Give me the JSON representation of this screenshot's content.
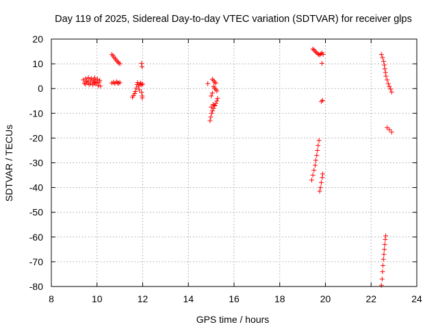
{
  "chart_data": {
    "type": "scatter",
    "title": "Day 119 of 2025, Sidereal Day-to-day VTEC variation (SDTVAR) for receiver glps",
    "xlabel": "GPS time / hours",
    "ylabel": "SDTVAR / TECUs",
    "xlim": [
      8,
      24
    ],
    "ylim": [
      -80,
      20
    ],
    "xticks": [
      "8",
      "10",
      "12",
      "14",
      "16",
      "18",
      "20",
      "22",
      "24"
    ],
    "yticks": [
      "20",
      "10",
      "0",
      "-10",
      "-20",
      "-30",
      "-40",
      "-50",
      "-60",
      "-70",
      "-80"
    ],
    "grid": true,
    "marker": "+",
    "color": "#ff0000",
    "series": [
      {
        "name": "SDTVAR",
        "points": [
          [
            9.4,
            3.5
          ],
          [
            9.45,
            2.2
          ],
          [
            9.5,
            4.0
          ],
          [
            9.5,
            1.8
          ],
          [
            9.55,
            3.0
          ],
          [
            9.6,
            2.6
          ],
          [
            9.62,
            4.4
          ],
          [
            9.65,
            1.6
          ],
          [
            9.7,
            3.4
          ],
          [
            9.72,
            2.0
          ],
          [
            9.75,
            4.1
          ],
          [
            9.8,
            2.8
          ],
          [
            9.82,
            1.5
          ],
          [
            9.85,
            3.6
          ],
          [
            9.88,
            2.4
          ],
          [
            9.9,
            4.3
          ],
          [
            9.92,
            1.9
          ],
          [
            9.95,
            3.1
          ],
          [
            10.0,
            2.3
          ],
          [
            10.02,
            3.8
          ],
          [
            10.05,
            1.2
          ],
          [
            10.1,
            2.6
          ],
          [
            10.12,
            3.3
          ],
          [
            10.15,
            1.0
          ],
          [
            10.65,
            13.8
          ],
          [
            10.7,
            13.2
          ],
          [
            10.75,
            12.6
          ],
          [
            10.8,
            12.0
          ],
          [
            10.85,
            11.4
          ],
          [
            10.9,
            10.9
          ],
          [
            10.95,
            10.4
          ],
          [
            11.0,
            10.0
          ],
          [
            10.65,
            2.2
          ],
          [
            10.72,
            2.6
          ],
          [
            10.78,
            2.0
          ],
          [
            10.85,
            2.8
          ],
          [
            10.9,
            2.3
          ],
          [
            10.95,
            2.1
          ],
          [
            11.0,
            2.5
          ],
          [
            11.55,
            -3.5
          ],
          [
            11.6,
            -2.8
          ],
          [
            11.65,
            -2.0
          ],
          [
            11.68,
            -1.2
          ],
          [
            11.72,
            0.2
          ],
          [
            11.75,
            1.6
          ],
          [
            11.78,
            2.4
          ],
          [
            11.82,
            1.0
          ],
          [
            11.85,
            -0.5
          ],
          [
            11.88,
            1.8
          ],
          [
            11.92,
            2.2
          ],
          [
            11.95,
            1.5
          ],
          [
            12.0,
            1.8
          ],
          [
            11.95,
            -1.5
          ],
          [
            11.98,
            -3.0
          ],
          [
            11.95,
            10.2
          ],
          [
            11.97,
            8.8
          ],
          [
            11.98,
            -3.8
          ],
          [
            14.85,
            2.0
          ],
          [
            15.05,
            3.8
          ],
          [
            15.1,
            3.2
          ],
          [
            15.15,
            2.6
          ],
          [
            15.2,
            2.2
          ],
          [
            15.1,
            0.8
          ],
          [
            15.15,
            0.2
          ],
          [
            15.2,
            -0.4
          ],
          [
            15.25,
            -1.0
          ],
          [
            15.05,
            -1.8
          ],
          [
            15.0,
            -3.0
          ],
          [
            14.95,
            -13.0
          ],
          [
            14.98,
            -11.5
          ],
          [
            15.02,
            -10.0
          ],
          [
            15.05,
            -9.0
          ],
          [
            15.1,
            -8.0
          ],
          [
            15.15,
            -7.0
          ],
          [
            15.2,
            -6.0
          ],
          [
            15.25,
            -5.0
          ],
          [
            15.28,
            -4.0
          ],
          [
            15.0,
            -7.5
          ],
          [
            15.08,
            -6.5
          ],
          [
            15.15,
            -6.8
          ],
          [
            19.45,
            16.0
          ],
          [
            19.5,
            15.6
          ],
          [
            19.55,
            15.1
          ],
          [
            19.6,
            14.6
          ],
          [
            19.65,
            14.2
          ],
          [
            19.7,
            13.8
          ],
          [
            19.75,
            13.6
          ],
          [
            19.8,
            14.0
          ],
          [
            19.85,
            14.4
          ],
          [
            19.9,
            13.8
          ],
          [
            19.85,
            10.2
          ],
          [
            19.82,
            -5.2
          ],
          [
            19.88,
            -4.8
          ],
          [
            19.4,
            -37.0
          ],
          [
            19.45,
            -35.0
          ],
          [
            19.5,
            -33.0
          ],
          [
            19.55,
            -31.0
          ],
          [
            19.58,
            -29.0
          ],
          [
            19.62,
            -27.0
          ],
          [
            19.65,
            -25.0
          ],
          [
            19.68,
            -23.0
          ],
          [
            19.72,
            -21.0
          ],
          [
            19.75,
            -41.5
          ],
          [
            19.78,
            -40.0
          ],
          [
            19.82,
            -38.0
          ],
          [
            19.86,
            -36.0
          ],
          [
            19.88,
            -34.5
          ],
          [
            22.45,
            13.8
          ],
          [
            22.5,
            12.5
          ],
          [
            22.55,
            11.0
          ],
          [
            22.58,
            9.5
          ],
          [
            22.6,
            8.0
          ],
          [
            22.63,
            6.5
          ],
          [
            22.65,
            5.0
          ],
          [
            22.7,
            3.5
          ],
          [
            22.75,
            2.0
          ],
          [
            22.8,
            0.8
          ],
          [
            22.85,
            -0.2
          ],
          [
            22.9,
            -1.4
          ],
          [
            22.7,
            -15.8
          ],
          [
            22.8,
            -16.6
          ],
          [
            22.9,
            -17.6
          ],
          [
            22.45,
            -79.5
          ],
          [
            22.48,
            -77.0
          ],
          [
            22.5,
            -74.0
          ],
          [
            22.52,
            -71.5
          ],
          [
            22.54,
            -69.0
          ],
          [
            22.56,
            -67.0
          ],
          [
            22.58,
            -65.0
          ],
          [
            22.6,
            -63.0
          ],
          [
            22.62,
            -61.0
          ],
          [
            22.64,
            -59.5
          ]
        ]
      }
    ]
  }
}
